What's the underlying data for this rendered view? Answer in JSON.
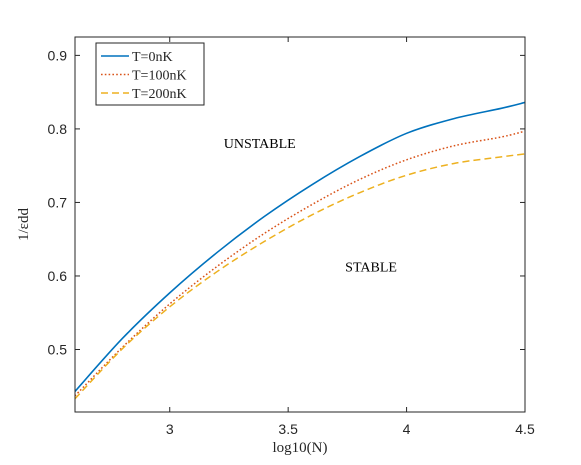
{
  "chart_data": {
    "type": "line",
    "xlabel": "log10(N)",
    "ylabel": "1/εdd",
    "xlim": [
      2.6,
      4.5
    ],
    "ylim": [
      0.415,
      0.925
    ],
    "x_ticks": [
      3,
      3.5,
      4,
      4.5
    ],
    "y_ticks": [
      0.5,
      0.6,
      0.7,
      0.8,
      0.9
    ],
    "x_tick_labels": [
      "3",
      "3.5",
      "4",
      "4.5"
    ],
    "y_tick_labels": [
      "0.5",
      "0.6",
      "0.7",
      "0.8",
      "0.9"
    ],
    "grid": false,
    "legend_position": "top-left",
    "x": [
      2.6,
      2.8,
      3.0,
      3.2,
      3.4,
      3.6,
      3.8,
      4.0,
      4.2,
      4.4,
      4.5
    ],
    "series": [
      {
        "name": "T=0nK",
        "color": "#0072BD",
        "dash": "solid",
        "values": [
          0.443,
          0.515,
          0.577,
          0.632,
          0.681,
          0.724,
          0.762,
          0.794,
          0.814,
          0.828,
          0.836
        ]
      },
      {
        "name": "T=100nK",
        "color": "#D95319",
        "dash": "dotted",
        "values": [
          0.437,
          0.503,
          0.562,
          0.613,
          0.658,
          0.697,
          0.731,
          0.758,
          0.777,
          0.789,
          0.797
        ]
      },
      {
        "name": "T=200nK",
        "color": "#EDB120",
        "dash": "dashed",
        "values": [
          0.433,
          0.501,
          0.558,
          0.606,
          0.647,
          0.683,
          0.713,
          0.737,
          0.753,
          0.762,
          0.766
        ]
      }
    ],
    "annotations": [
      {
        "text": "UNSTABLE",
        "x": 3.38,
        "y": 0.774
      },
      {
        "text": "STABLE",
        "x": 3.85,
        "y": 0.606
      }
    ]
  }
}
